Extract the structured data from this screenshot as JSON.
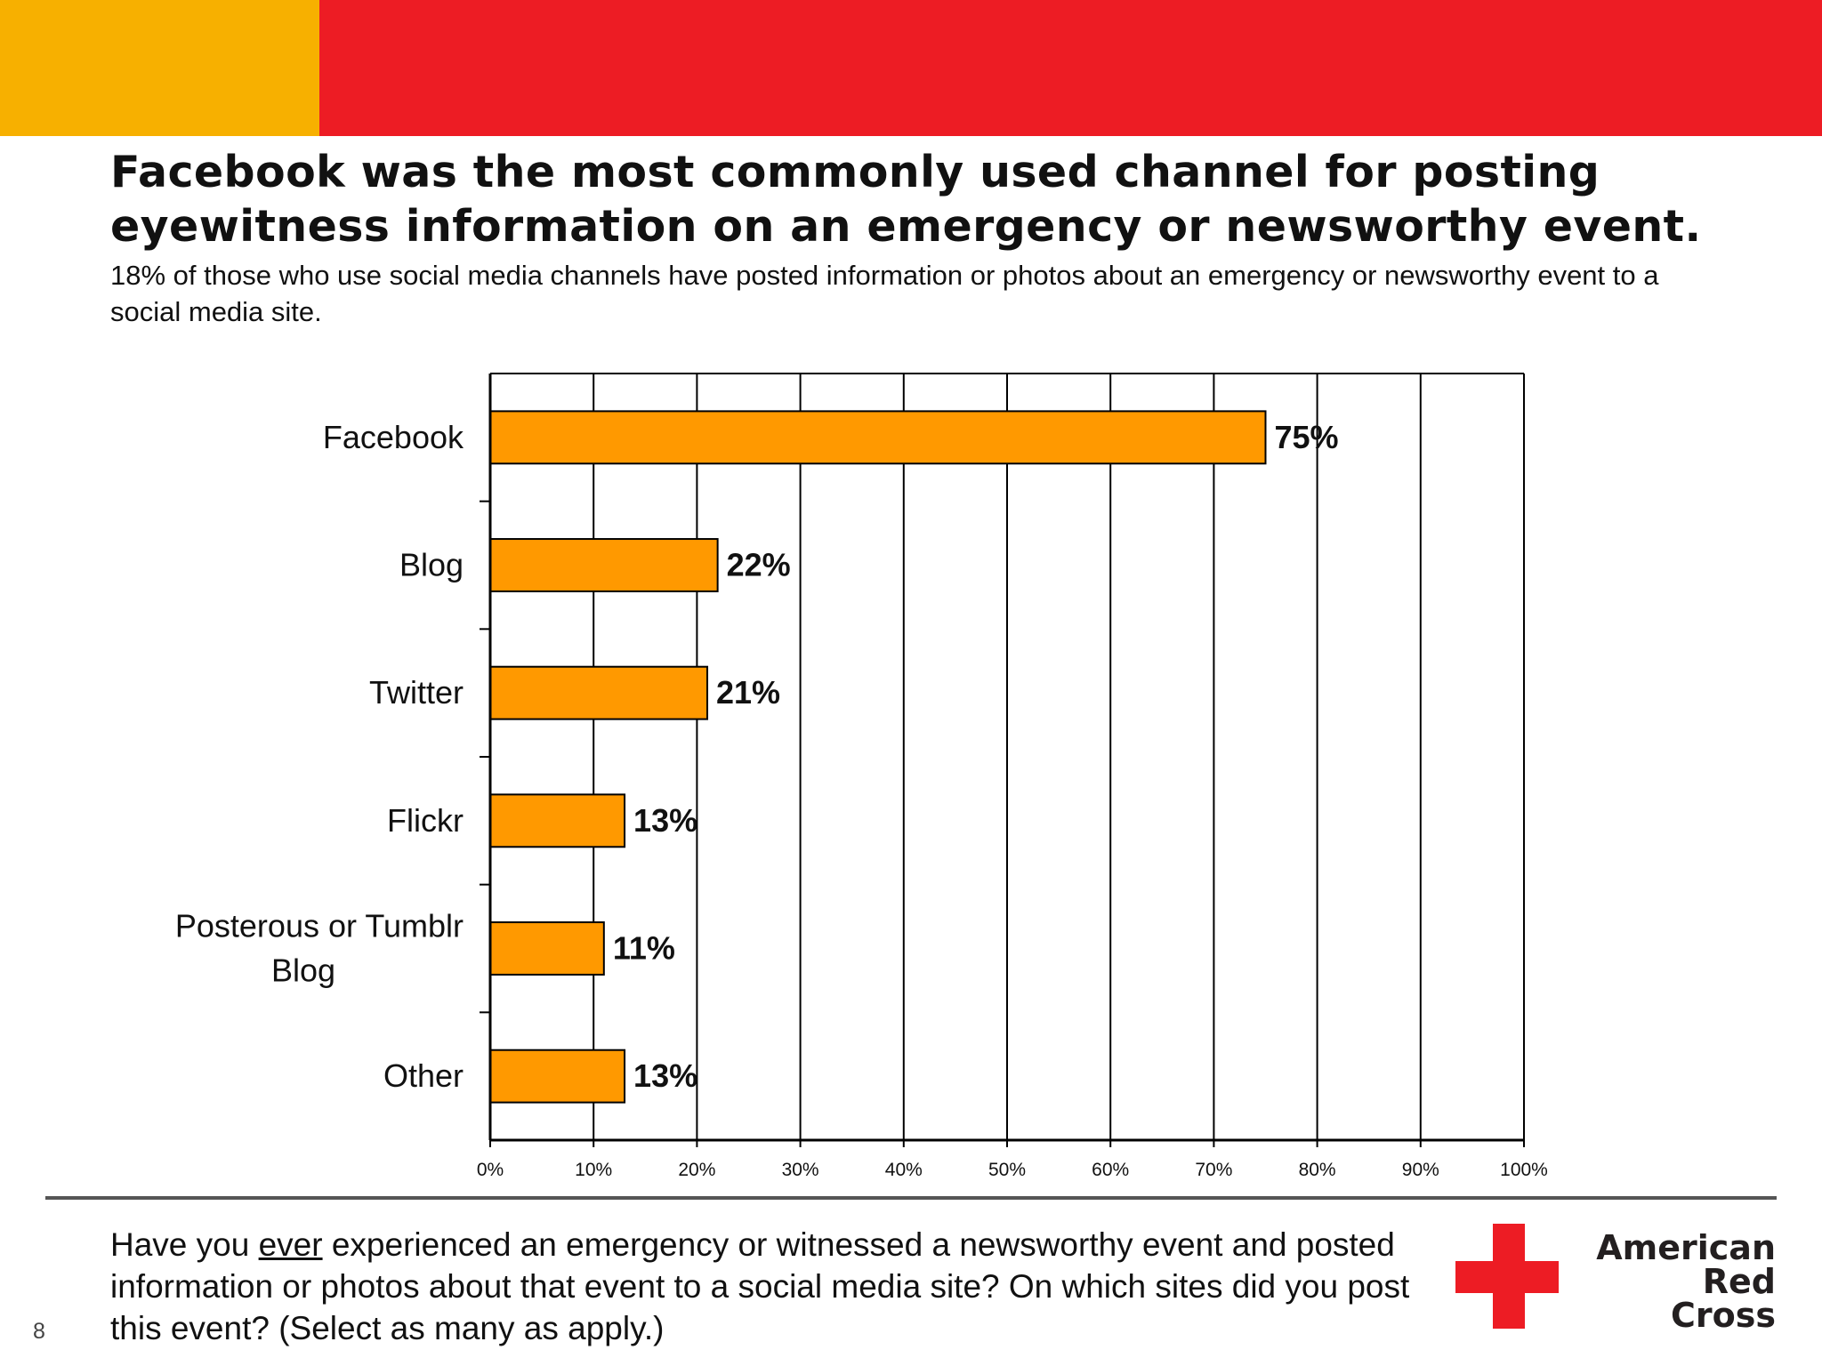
{
  "slide": {
    "band_colors": {
      "left": "#F7B000",
      "right": "#ED1C24"
    },
    "title_lines": [
      "Facebook was the most commonly used channel for posting",
      "eyewitness information on an emergency or newsworthy event."
    ],
    "subtitle": "18% of those who use social media channels have posted information or photos about an emergency or newsworthy event to a social media site.",
    "question_before": "Have you ",
    "question_underlined": "ever",
    "question_after": " experienced an emergency or witnessed a newsworthy event and posted information or photos about that event to a social media site?  On which sites did you post this event?  (Select as many as apply.)",
    "page_number": "8",
    "logo": {
      "line1": "American",
      "line2": "Red Cross",
      "cross_color": "#ED1C24",
      "icon": "red-cross-icon"
    }
  },
  "chart_data": {
    "type": "bar",
    "orientation": "horizontal",
    "categories": [
      "Facebook",
      "Blog",
      "Twitter",
      "Flickr",
      "Posterous or Tumblr Blog",
      "Other"
    ],
    "values": [
      75,
      22,
      21,
      13,
      11,
      13
    ],
    "data_labels": [
      "75%",
      "22%",
      "21%",
      "13%",
      "11%",
      "13%"
    ],
    "xlim": [
      0,
      100
    ],
    "x_ticks": [
      "0%",
      "10%",
      "20%",
      "30%",
      "40%",
      "50%",
      "60%",
      "70%",
      "80%",
      "90%",
      "100%"
    ],
    "grid": true,
    "bar_color": "#FF9900",
    "title": "",
    "xlabel": "",
    "ylabel": ""
  }
}
